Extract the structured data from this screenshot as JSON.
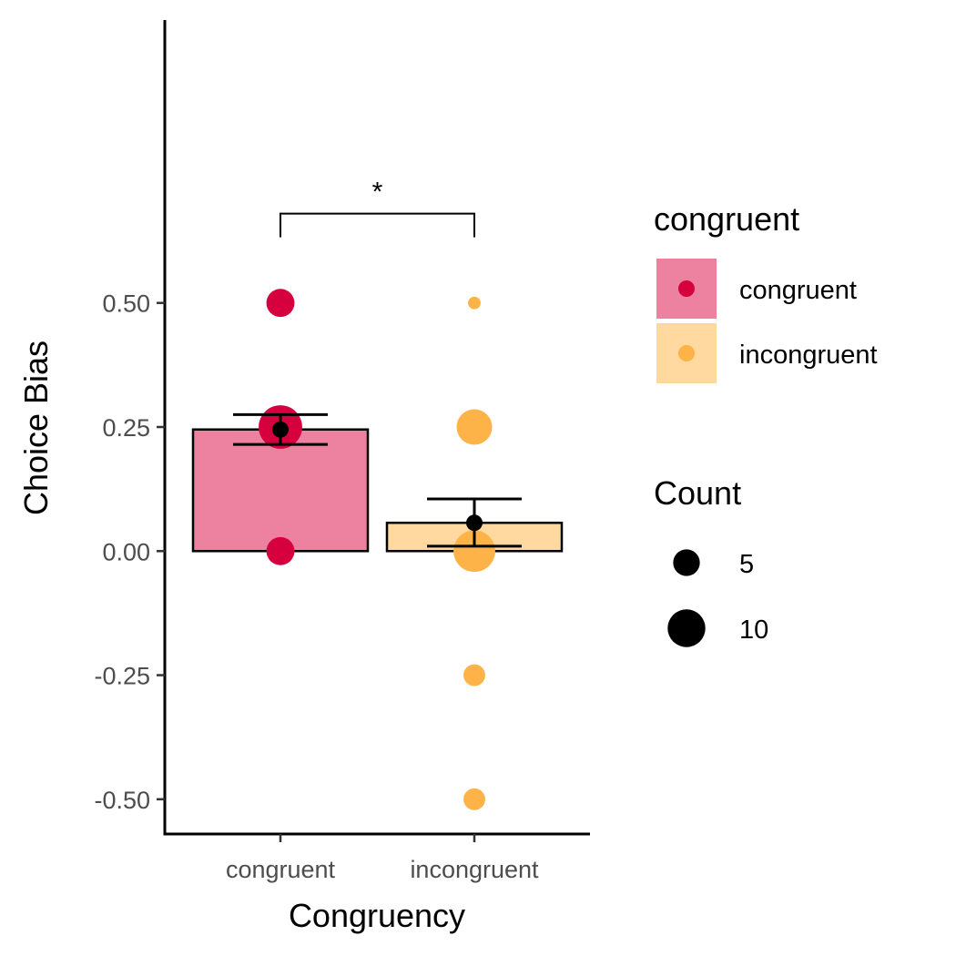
{
  "chart_data": {
    "type": "bar",
    "xlabel": "Congruency",
    "ylabel": "Choice Bias",
    "categories": [
      "congruent",
      "incongruent"
    ],
    "ylim": [
      -0.57,
      1.07
    ],
    "yticks": [
      -0.5,
      -0.25,
      0,
      0.25,
      0.5
    ],
    "ytick_labels": [
      "-0.50",
      "-0.25",
      "0.00",
      "0.25",
      "0.50"
    ],
    "bars": [
      {
        "category": "congruent",
        "mean": 0.245,
        "error_low": 0.215,
        "error_high": 0.275,
        "fill": "#ec829f",
        "stroke": "#000000"
      },
      {
        "category": "incongruent",
        "mean": 0.057,
        "error_low": 0.01,
        "error_high": 0.105,
        "fill": "#ffd9a0",
        "stroke": "#000000"
      }
    ],
    "points": [
      {
        "category": "congruent",
        "y": 0.5,
        "count": 5,
        "color": "#d6003f"
      },
      {
        "category": "congruent",
        "y": 0.25,
        "count": 12,
        "color": "#d6003f"
      },
      {
        "category": "congruent",
        "y": 0.0,
        "count": 5,
        "color": "#d6003f"
      },
      {
        "category": "incongruent",
        "y": 0.5,
        "count": 1,
        "color": "#fdb347"
      },
      {
        "category": "incongruent",
        "y": 0.25,
        "count": 8,
        "color": "#fdb347"
      },
      {
        "category": "incongruent",
        "y": 0.0,
        "count": 11,
        "color": "#fdb347"
      },
      {
        "category": "incongruent",
        "y": -0.25,
        "count": 3,
        "color": "#fdb347"
      },
      {
        "category": "incongruent",
        "y": -0.5,
        "count": 3,
        "color": "#fdb347"
      }
    ],
    "significance": {
      "from": "congruent",
      "to": "incongruent",
      "y": 0.68,
      "label": "*"
    },
    "legend": {
      "placement": "right",
      "fill_title": "congruent",
      "fill_items": [
        {
          "label": "congruent",
          "fill": "#ec829f",
          "point_color": "#d6003f"
        },
        {
          "label": "incongruent",
          "fill": "#ffd9a0",
          "point_color": "#fdb347"
        }
      ],
      "size_title": "Count",
      "size_items": [
        {
          "label": "5",
          "count": 5
        },
        {
          "label": "10",
          "count": 10
        }
      ]
    }
  }
}
